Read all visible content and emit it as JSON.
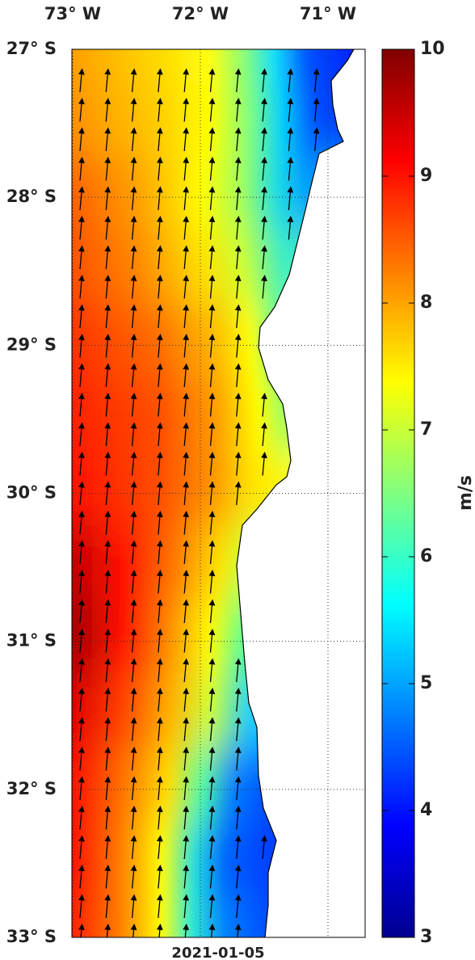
{
  "map": {
    "lon_ticks": [
      {
        "value": -73,
        "label": "73° W"
      },
      {
        "value": -72,
        "label": "72° W"
      },
      {
        "value": -71,
        "label": "71° W"
      }
    ],
    "lat_ticks": [
      {
        "value": -27,
        "label": "27° S"
      },
      {
        "value": -28,
        "label": "28° S"
      },
      {
        "value": -29,
        "label": "29° S"
      },
      {
        "value": -30,
        "label": "30° S"
      },
      {
        "value": -31,
        "label": "31° S"
      },
      {
        "value": -32,
        "label": "32° S"
      },
      {
        "value": -33,
        "label": "33° S"
      }
    ],
    "grid": true,
    "date": "2021-01-05",
    "colorbar": {
      "label": "m/s",
      "lim": [
        3,
        10
      ],
      "ticks": [
        3,
        4,
        5,
        6,
        7,
        8,
        9,
        10
      ],
      "colormap": "jet"
    }
  }
}
